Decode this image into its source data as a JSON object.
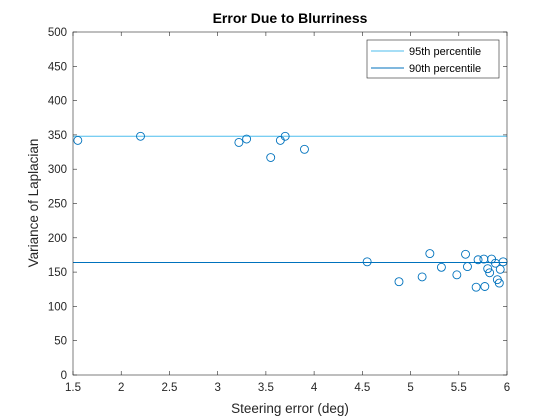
{
  "chart_data": {
    "type": "scatter",
    "title": "Error Due to Blurriness",
    "xlabel": "Steering error (deg)",
    "ylabel": "Variance of Laplacian",
    "xlim": [
      1.5,
      6
    ],
    "ylim": [
      0,
      500
    ],
    "xticks": [
      "1.5",
      "2",
      "2.5",
      "3",
      "3.5",
      "4",
      "4.5",
      "5",
      "5.5",
      "6"
    ],
    "yticks": [
      "0",
      "50",
      "100",
      "150",
      "200",
      "250",
      "300",
      "350",
      "400",
      "450",
      "500"
    ],
    "grid": false,
    "legend_position": "top-right",
    "marker_color": "#0072bd",
    "series": [
      {
        "type": "scatter",
        "points": [
          {
            "x": 1.55,
            "y": 342
          },
          {
            "x": 2.2,
            "y": 348
          },
          {
            "x": 3.22,
            "y": 339
          },
          {
            "x": 3.3,
            "y": 344
          },
          {
            "x": 3.55,
            "y": 317
          },
          {
            "x": 3.65,
            "y": 342
          },
          {
            "x": 3.7,
            "y": 348
          },
          {
            "x": 3.9,
            "y": 329
          },
          {
            "x": 4.55,
            "y": 165
          },
          {
            "x": 4.88,
            "y": 136
          },
          {
            "x": 5.12,
            "y": 143
          },
          {
            "x": 5.2,
            "y": 177
          },
          {
            "x": 5.32,
            "y": 157
          },
          {
            "x": 5.48,
            "y": 146
          },
          {
            "x": 5.57,
            "y": 176
          },
          {
            "x": 5.59,
            "y": 158
          },
          {
            "x": 5.68,
            "y": 128
          },
          {
            "x": 5.7,
            "y": 168
          },
          {
            "x": 5.76,
            "y": 169
          },
          {
            "x": 5.77,
            "y": 129
          },
          {
            "x": 5.8,
            "y": 155
          },
          {
            "x": 5.82,
            "y": 149
          },
          {
            "x": 5.84,
            "y": 169
          },
          {
            "x": 5.88,
            "y": 163
          },
          {
            "x": 5.9,
            "y": 139
          },
          {
            "x": 5.92,
            "y": 134
          },
          {
            "x": 5.93,
            "y": 154
          },
          {
            "x": 5.96,
            "y": 165
          }
        ]
      },
      {
        "name": "95th percentile",
        "type": "hline",
        "y": 348,
        "color": "#4dbeee"
      },
      {
        "name": "90th percentile",
        "type": "hline",
        "y": 164,
        "color": "#0072bd"
      }
    ]
  }
}
